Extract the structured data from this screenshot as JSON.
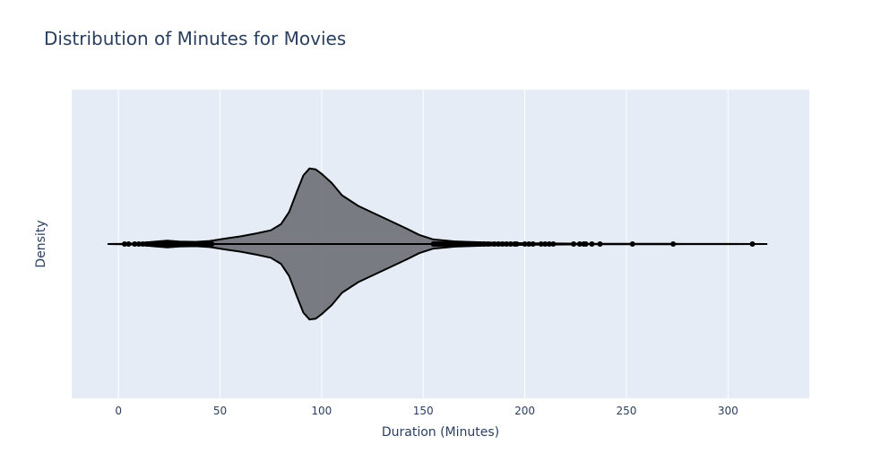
{
  "chart_data": {
    "type": "violin",
    "title": "Distribution of Minutes for Movies",
    "xlabel": "Duration (Minutes)",
    "ylabel": "Density",
    "xlim": [
      -23,
      340
    ],
    "xticks": [
      0,
      50,
      100,
      150,
      200,
      250,
      300
    ],
    "orientation": "horizontal",
    "grid": true,
    "colors": {
      "plot_bg": "#e5ecf6",
      "paper_bg": "#ffffff",
      "grid": "#ffffff",
      "text": "#2a3f5f",
      "fill": "#6b7075",
      "line": "#000000"
    },
    "whisker_range": [
      -5,
      319
    ],
    "density_profile": [
      [
        -5,
        0.0
      ],
      [
        3,
        0.004
      ],
      [
        10,
        0.012
      ],
      [
        18,
        0.03
      ],
      [
        24,
        0.045
      ],
      [
        30,
        0.032
      ],
      [
        38,
        0.028
      ],
      [
        45,
        0.04
      ],
      [
        52,
        0.07
      ],
      [
        60,
        0.1
      ],
      [
        68,
        0.14
      ],
      [
        75,
        0.18
      ],
      [
        80,
        0.26
      ],
      [
        84,
        0.42
      ],
      [
        88,
        0.7
      ],
      [
        91,
        0.9
      ],
      [
        94,
        0.99
      ],
      [
        97,
        0.98
      ],
      [
        100,
        0.92
      ],
      [
        105,
        0.8
      ],
      [
        110,
        0.64
      ],
      [
        118,
        0.5
      ],
      [
        126,
        0.4
      ],
      [
        134,
        0.3
      ],
      [
        142,
        0.2
      ],
      [
        148,
        0.12
      ],
      [
        155,
        0.06
      ],
      [
        165,
        0.035
      ],
      [
        180,
        0.02
      ],
      [
        200,
        0.01
      ],
      [
        230,
        0.004
      ],
      [
        270,
        0.002
      ],
      [
        300,
        0.001
      ],
      [
        319,
        0.0
      ]
    ],
    "lower_outliers": [
      3,
      5,
      8,
      10,
      12,
      14,
      15,
      16,
      17,
      18,
      19,
      20,
      21,
      22,
      23,
      24,
      25,
      26,
      27,
      28,
      29,
      30,
      31,
      32,
      33,
      34,
      35,
      36,
      37,
      38,
      39,
      40,
      41,
      42,
      43,
      44,
      45,
      46
    ],
    "upper_outliers": [
      155,
      156,
      157,
      158,
      159,
      160,
      161,
      162,
      163,
      164,
      165,
      166,
      167,
      168,
      169,
      170,
      171,
      172,
      173,
      174,
      175,
      176,
      177,
      178,
      180,
      182,
      185,
      187,
      189,
      191,
      193,
      195,
      196,
      200,
      202,
      204,
      208,
      210,
      212,
      214,
      224,
      227,
      229,
      230,
      233,
      237,
      253,
      273,
      312
    ]
  }
}
